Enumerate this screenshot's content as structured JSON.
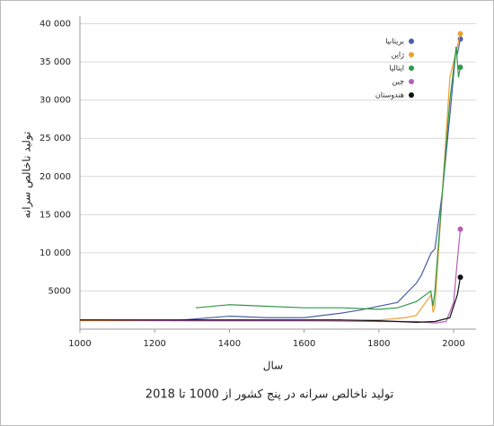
{
  "chart_data": {
    "type": "line",
    "title": "تولید ناخالص سرانه در پنج کشور از 1000 تا 2018",
    "x_label": "سال",
    "y_label": "تولید ناخالص سرانه",
    "xlim": [
      1000,
      2060
    ],
    "xticks": [
      1000,
      1200,
      1400,
      1600,
      1800,
      2000
    ],
    "ylim": [
      0,
      41000
    ],
    "yticks": [
      {
        "value": 5000,
        "label": "5000"
      },
      {
        "value": 10000,
        "label": "10 000"
      },
      {
        "value": 15000,
        "label": "15 000"
      },
      {
        "value": 20000,
        "label": "20 000"
      },
      {
        "value": 25000,
        "label": "25 000"
      },
      {
        "value": 30000,
        "label": "30 000"
      },
      {
        "value": 35000,
        "label": "35 000"
      },
      {
        "value": 40000,
        "label": "40 000"
      }
    ],
    "grid": true,
    "legend": "top-right",
    "series": [
      {
        "name": "بریتانیا",
        "color": "#4a5ea8",
        "x": [
          1250,
          1400,
          1500,
          1600,
          1700,
          1750,
          1800,
          1850,
          1900,
          1913,
          1940,
          1950,
          1970,
          1990,
          2007,
          2010,
          2018
        ],
        "values": [
          1100,
          1700,
          1500,
          1500,
          2100,
          2500,
          3000,
          3500,
          6000,
          7000,
          10000,
          10500,
          18000,
          28000,
          37000,
          36000,
          38000
        ]
      },
      {
        "name": "ژاپن",
        "color": "#f0a030",
        "x": [
          1000,
          1300,
          1600,
          1700,
          1800,
          1870,
          1900,
          1940,
          1945,
          1950,
          1970,
          1990,
          2000,
          2018
        ],
        "values": [
          1100,
          1100,
          1100,
          1100,
          1200,
          1500,
          1800,
          4500,
          2200,
          3000,
          18000,
          33000,
          35000,
          38700
        ]
      },
      {
        "name": "ایتالیا",
        "color": "#2e9a48",
        "x": [
          1310,
          1400,
          1500,
          1600,
          1700,
          1800,
          1850,
          1900,
          1939,
          1945,
          1950,
          1970,
          1990,
          2007,
          2013,
          2018
        ],
        "values": [
          2800,
          3200,
          3000,
          2800,
          2800,
          2600,
          2800,
          3600,
          5000,
          3000,
          5000,
          18000,
          30000,
          37000,
          33000,
          34300
        ]
      },
      {
        "name": "چین",
        "color": "#b65fb5",
        "x": [
          1000,
          1300,
          1600,
          1800,
          1900,
          1950,
          1980,
          2000,
          2010,
          2018
        ],
        "values": [
          1200,
          1100,
          1100,
          1000,
          1000,
          800,
          1000,
          3500,
          9000,
          13100
        ]
      },
      {
        "name": "هندوستان",
        "color": "#111111",
        "x": [
          1000,
          1600,
          1700,
          1800,
          1900,
          1950,
          1990,
          2010,
          2018
        ],
        "values": [
          1200,
          1200,
          1200,
          1100,
          900,
          1000,
          1500,
          4500,
          6800
        ]
      }
    ]
  }
}
